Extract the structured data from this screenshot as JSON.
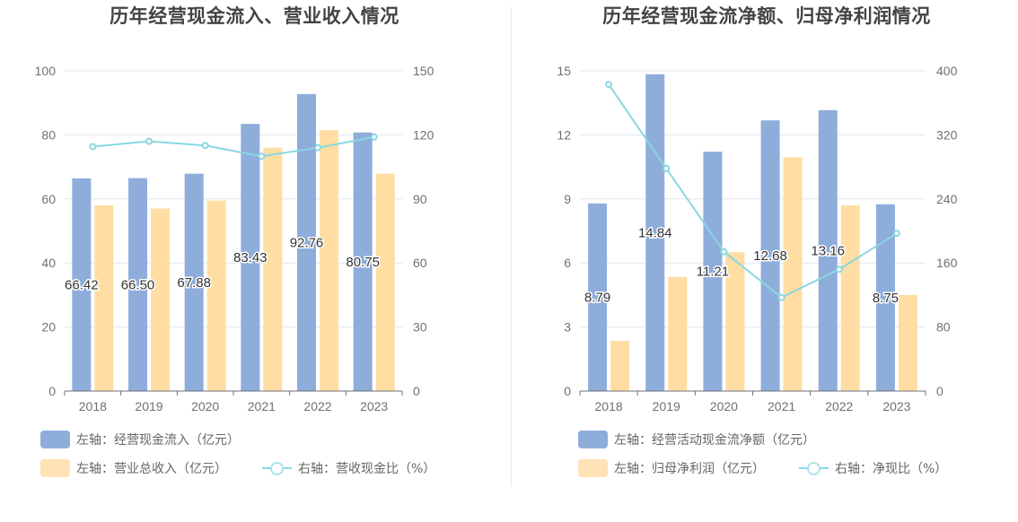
{
  "colors": {
    "bar_a": "#8eaddb",
    "bar_b": "#ffdda3",
    "line": "#89d7e1",
    "grid": "#e0e6f1",
    "axis_text": "#6e7079"
  },
  "charts": [
    {
      "title": "历年经营现金流入、营业收入情况",
      "legend": [
        {
          "label": "左轴：经营现金流入（亿元）",
          "kind": "bar",
          "icon": "legend-bar-blue-icon"
        },
        {
          "label": "左轴：营业总收入（亿元）",
          "kind": "bar",
          "icon": "legend-bar-orange-icon"
        },
        {
          "label": "右轴：营收现金比（%）",
          "kind": "line",
          "icon": "legend-line-circle-icon"
        }
      ]
    },
    {
      "title": "历年经营现金流净额、归母净利润情况",
      "legend": [
        {
          "label": "左轴：经营活动现金流净额（亿元）",
          "kind": "bar",
          "icon": "legend-bar-blue-icon"
        },
        {
          "label": "左轴：归母净利润（亿元）",
          "kind": "bar",
          "icon": "legend-bar-orange-icon"
        },
        {
          "label": "右轴：净现比（%）",
          "kind": "line",
          "icon": "legend-line-circle-icon"
        }
      ]
    }
  ],
  "chart_data": [
    {
      "type": "bar",
      "title": "历年经营现金流入、营业收入情况",
      "categories": [
        "2018",
        "2019",
        "2020",
        "2021",
        "2022",
        "2023"
      ],
      "y_left": {
        "min": 0,
        "max": 100,
        "ticks": [
          "0",
          "20",
          "40",
          "60",
          "80",
          "100"
        ]
      },
      "y_right": {
        "min": 0,
        "max": 150,
        "ticks": [
          "0",
          "30",
          "60",
          "90",
          "120",
          "150"
        ]
      },
      "grid": true,
      "legend_position": "bottom",
      "series": [
        {
          "name": "左轴：经营现金流入（亿元）",
          "type": "bar",
          "axis": "left",
          "values": [
            66.42,
            66.5,
            67.88,
            83.43,
            92.76,
            80.75
          ],
          "labels": [
            "66.42",
            "66.50",
            "67.88",
            "83.43",
            "92.76",
            "80.75"
          ]
        },
        {
          "name": "左轴：营业总收入（亿元）",
          "type": "bar",
          "axis": "left",
          "values": [
            58.0,
            57.0,
            59.5,
            76.0,
            81.5,
            67.9
          ]
        },
        {
          "name": "右轴：营收现金比（%）",
          "type": "line",
          "axis": "right",
          "values": [
            114.5,
            117,
            115,
            110,
            114,
            119
          ]
        }
      ]
    },
    {
      "type": "bar",
      "title": "历年经营现金流净额、归母净利润情况",
      "categories": [
        "2018",
        "2019",
        "2020",
        "2021",
        "2022",
        "2023"
      ],
      "y_left": {
        "min": 0,
        "max": 15,
        "ticks": [
          "0",
          "3",
          "6",
          "9",
          "12",
          "15"
        ]
      },
      "y_right": {
        "min": 0,
        "max": 400,
        "ticks": [
          "0",
          "80",
          "160",
          "240",
          "320",
          "400"
        ]
      },
      "grid": true,
      "legend_position": "bottom",
      "series": [
        {
          "name": "左轴：经营活动现金流净额（亿元）",
          "type": "bar",
          "axis": "left",
          "values": [
            8.79,
            14.84,
            11.21,
            12.68,
            13.16,
            8.75
          ],
          "labels": [
            "8.79",
            "14.84",
            "11.21",
            "12.68",
            "13.16",
            "8.75"
          ]
        },
        {
          "name": "左轴：归母净利润（亿元）",
          "type": "bar",
          "axis": "left",
          "values": [
            2.35,
            5.35,
            6.5,
            10.95,
            8.7,
            4.5
          ]
        },
        {
          "name": "右轴：净现比（%）",
          "type": "line",
          "axis": "right",
          "values": [
            383,
            278,
            174,
            117,
            152,
            197
          ]
        }
      ]
    }
  ]
}
